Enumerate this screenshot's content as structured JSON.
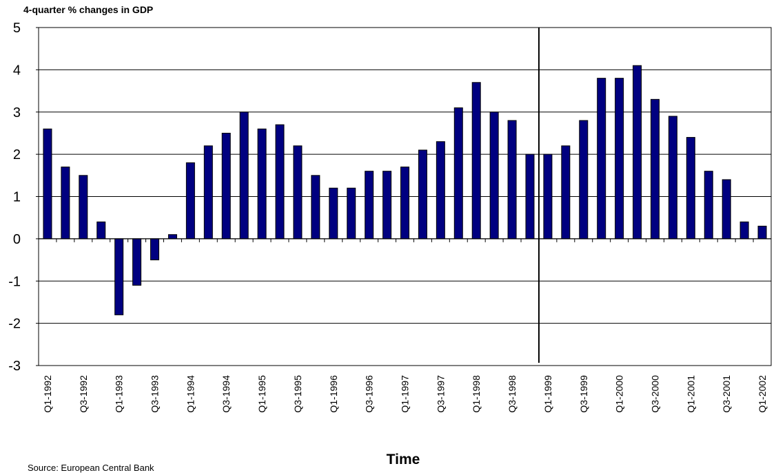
{
  "chart_data": {
    "type": "bar",
    "title": "",
    "ylabel": "4-quarter % changes in GDP",
    "xlabel": "Time",
    "source": "Source:  European Central Bank",
    "ylim": [
      -3,
      5
    ],
    "yticks": [
      "5",
      "4",
      "3",
      "2",
      "1",
      "0",
      "-1",
      "-2",
      "-3"
    ],
    "grid": true,
    "bar_color": "#000080",
    "vertical_marker_after_category": "Q4-1998",
    "categories": [
      "Q1-1992",
      "Q2-1992",
      "Q3-1992",
      "Q4-1992",
      "Q1-1993",
      "Q2-1993",
      "Q3-1993",
      "Q4-1993",
      "Q1-1994",
      "Q2-1994",
      "Q3-1994",
      "Q4-1994",
      "Q1-1995",
      "Q2-1995",
      "Q3-1995",
      "Q4-1995",
      "Q1-1996",
      "Q2-1996",
      "Q3-1996",
      "Q4-1996",
      "Q1-1997",
      "Q2-1997",
      "Q3-1997",
      "Q4-1997",
      "Q1-1998",
      "Q2-1998",
      "Q3-1998",
      "Q4-1998",
      "Q1-1999",
      "Q2-1999",
      "Q3-1999",
      "Q4-1999",
      "Q1-2000",
      "Q2-2000",
      "Q3-2000",
      "Q4-2000",
      "Q1-2001",
      "Q2-2001",
      "Q3-2001",
      "Q4-2001",
      "Q1-2002"
    ],
    "shown_tick_labels": [
      "Q1-1992",
      "",
      "Q3-1992",
      "",
      "Q1-1993",
      "",
      "Q3-1993",
      "",
      "Q1-1994",
      "",
      "Q3-1994",
      "",
      "Q1-1995",
      "",
      "Q3-1995",
      "",
      "Q1-1996",
      "",
      "Q3-1996",
      "",
      "Q1-1997",
      "",
      "Q3-1997",
      "",
      "Q1-1998",
      "",
      "Q3-1998",
      "",
      "Q1-1999",
      "",
      "Q3-1999",
      "",
      "Q1-2000",
      "",
      "Q3-2000",
      "",
      "Q1-2001",
      "",
      "Q3-2001",
      "",
      "Q1-2002"
    ],
    "values": [
      2.6,
      1.7,
      1.5,
      0.4,
      -1.8,
      -1.1,
      -0.5,
      0.1,
      1.8,
      2.2,
      2.5,
      3.0,
      2.6,
      2.7,
      2.2,
      1.5,
      1.2,
      1.2,
      1.6,
      1.6,
      1.7,
      2.1,
      2.3,
      3.1,
      3.7,
      3.0,
      2.8,
      2.0,
      2.0,
      2.2,
      2.8,
      3.8,
      3.8,
      4.1,
      3.3,
      2.9,
      2.4,
      1.6,
      1.4,
      0.4,
      0.3
    ]
  }
}
